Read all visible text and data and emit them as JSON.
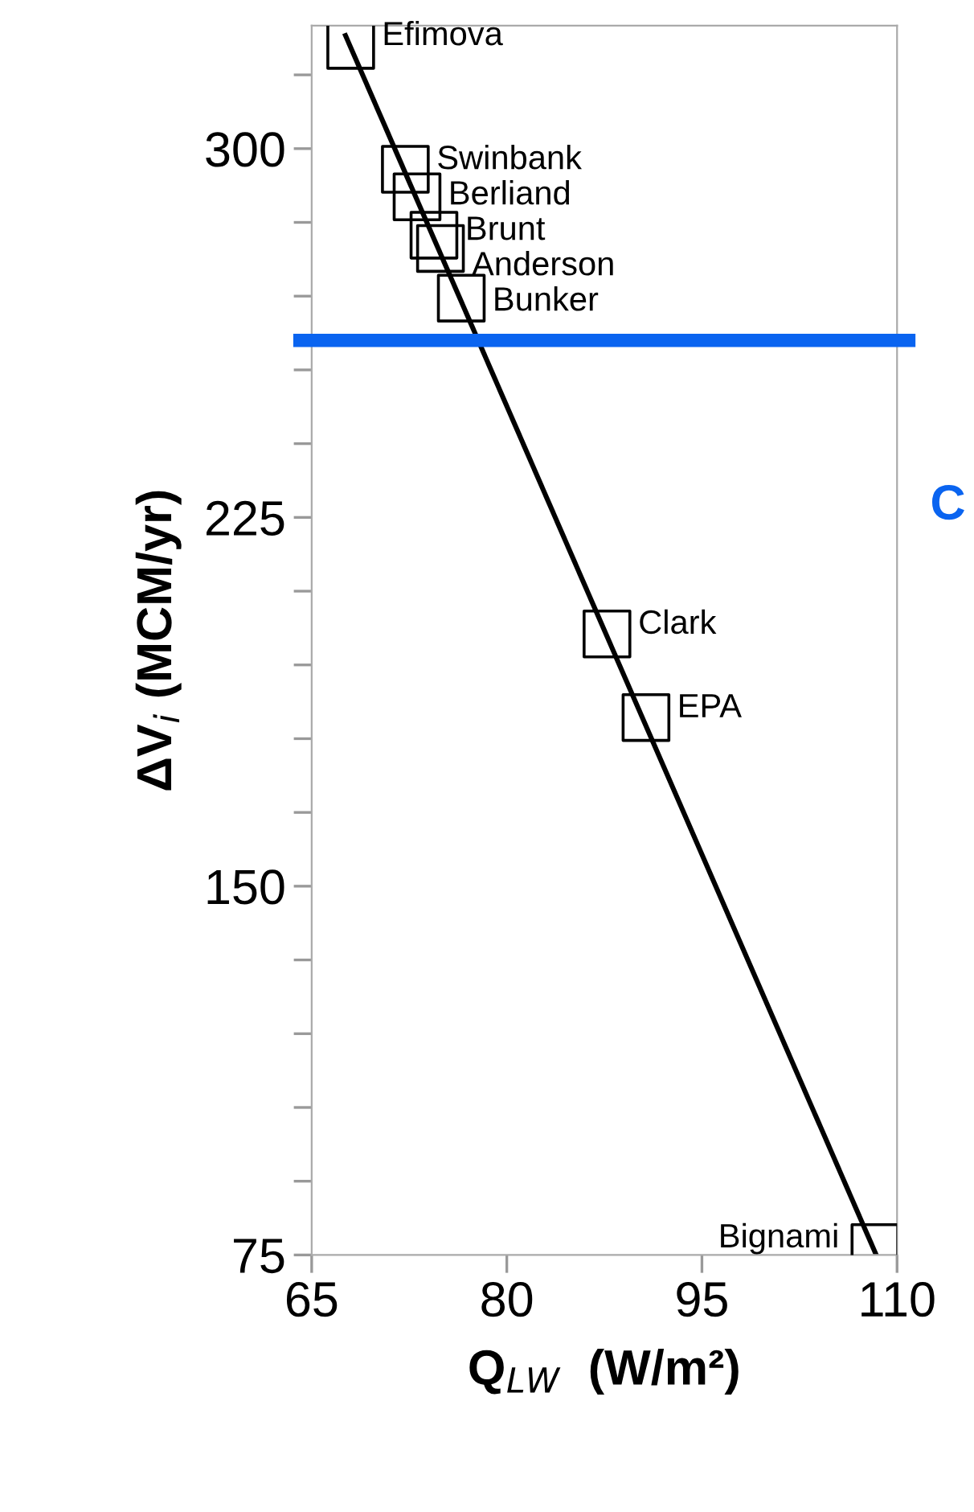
{
  "chart_data": {
    "type": "scatter",
    "xlabel": "Q$_{LW}$  (W/m²)",
    "ylabel": "ΔV$_{i}$ (MCM/yr)",
    "series": [
      {
        "color": "#000000",
        "marker": "square",
        "x": [
          68.0,
          72.2,
          73.1,
          74.4,
          74.9,
          76.5,
          87.7,
          90.7,
          108.3
        ],
        "values": [
          321,
          295.8,
          290.2,
          282.4,
          279.7,
          269.6,
          201.3,
          184.3,
          76.5
        ]
      },
      {
        "type": "line",
        "color": "#000000",
        "marker": "none",
        "x": [
          67.6,
          108.4
        ],
        "values": [
          323,
          75
        ]
      }
    ],
    "annotations": [
      {
        "text": "Efimova",
        "x": 68.0,
        "y": 321
      },
      {
        "text": "Swinbank",
        "x": 72.2,
        "y": 295.8
      },
      {
        "text": "Berliand",
        "x": 73.1,
        "y": 290.2
      },
      {
        "text": "Brunt",
        "x": 74.4,
        "y": 282.4
      },
      {
        "text": "Anderson",
        "x": 74.9,
        "y": 279.7
      },
      {
        "text": "Bunker",
        "x": 76.5,
        "y": 269.6
      },
      {
        "text": "Clark",
        "x": 87.7,
        "y": 201.3
      },
      {
        "text": "EPA",
        "x": 90.7,
        "y": 184.3
      },
      {
        "text": "Bignami",
        "x": 108.3,
        "y": 76.5
      },
      "C"
    ],
    "ref_lines": [
      {
        "axis": "y",
        "value": 261,
        "color": "#0a64f0"
      }
    ],
    "xlim": [
      65,
      110
    ],
    "ylim": [
      75,
      325
    ],
    "xticks": [
      65,
      80,
      95,
      110
    ],
    "yticks": [
      75,
      {
        "value": 90,
        "label": null
      },
      {
        "value": 105,
        "label": null
      },
      {
        "value": 120,
        "label": null
      },
      {
        "value": 135,
        "label": null
      },
      150,
      {
        "value": 165,
        "label": null
      },
      {
        "value": 180,
        "label": null
      },
      {
        "value": 195,
        "label": null
      },
      {
        "value": 210,
        "label": null
      },
      225,
      {
        "value": 240,
        "label": null
      },
      {
        "value": 255,
        "label": null
      },
      {
        "value": 270,
        "label": null
      },
      {
        "value": 285,
        "label": null
      },
      300,
      {
        "value": 315,
        "label": null
      }
    ],
    "grid": false,
    "legend": false
  }
}
